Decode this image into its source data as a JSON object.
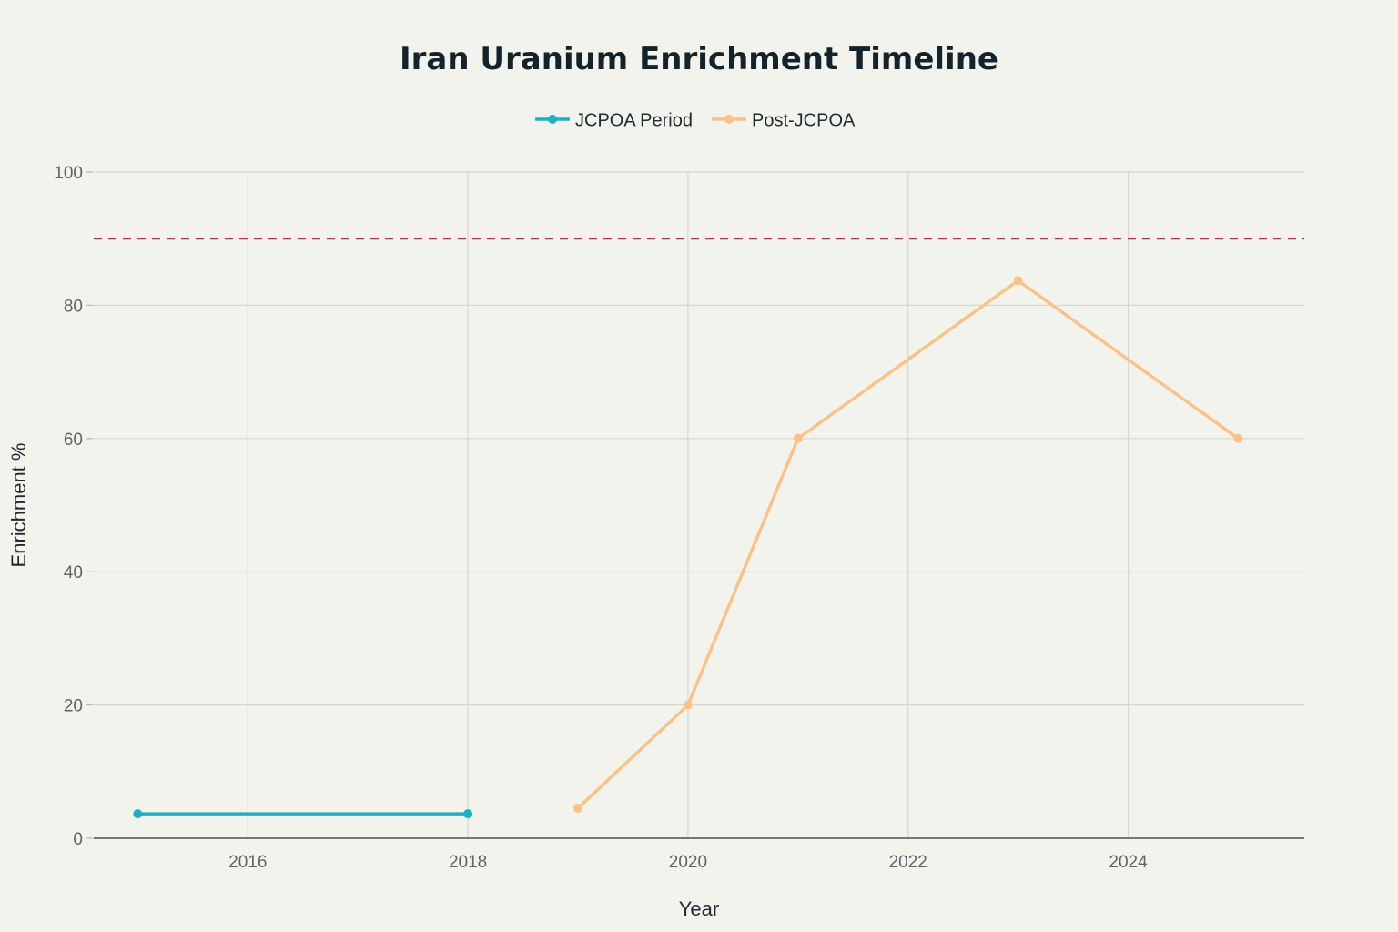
{
  "chart_data": {
    "type": "line",
    "title": "Iran Uranium Enrichment Timeline",
    "xlabel": "Year",
    "ylabel": "Enrichment %",
    "xlim": [
      2014.6,
      2025.6
    ],
    "ylim": [
      0,
      100
    ],
    "xticks": [
      2016,
      2018,
      2020,
      2022,
      2024
    ],
    "yticks": [
      0,
      20,
      40,
      60,
      80,
      100
    ],
    "xtick_labels": [
      "2016",
      "2018",
      "2020",
      "2022",
      "2024"
    ],
    "ytick_labels": [
      "0",
      "20",
      "40",
      "60",
      "80",
      "100"
    ],
    "grid": true,
    "legend_position": "top-center",
    "series": [
      {
        "name": "JCPOA Period",
        "color": "#1fb0c4",
        "x": [
          2015,
          2018
        ],
        "y": [
          3.67,
          3.67
        ]
      },
      {
        "name": "Post-JCPOA",
        "color": "#fbc287",
        "x": [
          2019,
          2020,
          2021,
          2023,
          2025
        ],
        "y": [
          4.5,
          20,
          60,
          83.7,
          60
        ]
      }
    ],
    "reference_lines": [
      {
        "orientation": "horizontal",
        "y": 90,
        "color": "#b03a32",
        "style": "dashed"
      }
    ]
  }
}
